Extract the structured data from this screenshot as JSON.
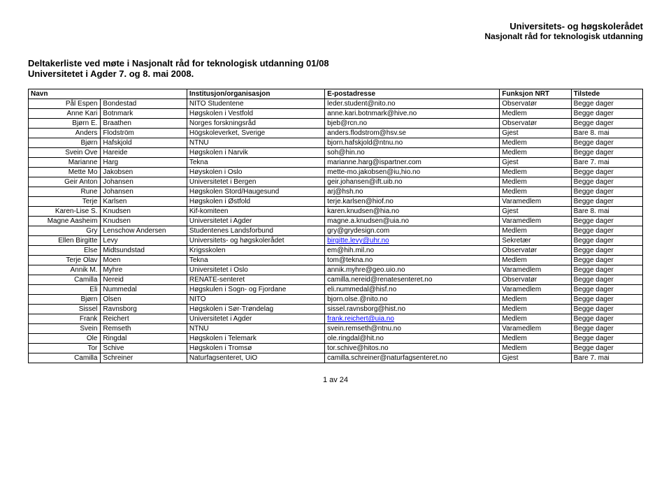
{
  "header": {
    "org_line1": "Universitets- og høgskolerådet",
    "org_line2": "Nasjonalt råd for teknologisk utdanning"
  },
  "title": {
    "line1": "Deltakerliste ved møte i Nasjonalt råd for teknologisk utdanning 01/08",
    "line2": "Universitetet i Agder 7. og 8. mai 2008."
  },
  "columns": {
    "navn": "Navn",
    "inst": "Institusjon/organisasjon",
    "email": "E-postadresse",
    "func": "Funksjon NRT",
    "tilstede": "Tilstede"
  },
  "rows": [
    {
      "f": "Pål Espen",
      "l": "Bondestad",
      "i": "NITO Studentene",
      "e": "leder.student@nito.no",
      "el": false,
      "fn": "Observatør",
      "t": "Begge dager"
    },
    {
      "f": "Anne Kari",
      "l": "Botnmark",
      "i": "Høgskolen i Vestfold",
      "e": "anne.kari.botnmark@hive.no",
      "el": false,
      "fn": "Medlem",
      "t": "Begge dager"
    },
    {
      "f": "Bjørn E.",
      "l": "Braathen",
      "i": "Norges forskningsråd",
      "e": "bjeb@rcn.no",
      "el": false,
      "fn": "Observatør",
      "t": "Begge dager"
    },
    {
      "f": "Anders",
      "l": "Flodström",
      "i": "Högskoleverket, Sverige",
      "e": "anders.flodstrom@hsv.se",
      "el": false,
      "fn": "Gjest",
      "t": "Bare 8. mai"
    },
    {
      "f": "Bjørn",
      "l": "Hafskjold",
      "i": "NTNU",
      "e": "bjorn.hafskjold@ntnu.no",
      "el": false,
      "fn": "Medlem",
      "t": "Begge dager"
    },
    {
      "f": "Svein Ove",
      "l": "Hareide",
      "i": "Høgskolen i Narvik",
      "e": "soh@hin.no",
      "el": false,
      "fn": "Medlem",
      "t": "Begge dager"
    },
    {
      "f": "Marianne",
      "l": "Harg",
      "i": "Tekna",
      "e": "marianne.harg@ispartner.com",
      "el": false,
      "fn": "Gjest",
      "t": "Bare 7. mai"
    },
    {
      "f": "Mette Mo",
      "l": "Jakobsen",
      "i": "Høyskolen i Oslo",
      "e": "mette-mo.jakobsen@iu,hio.no",
      "el": false,
      "fn": "Medlem",
      "t": "Begge dager"
    },
    {
      "f": "Geir Anton",
      "l": "Johansen",
      "i": "Universitetet i Bergen",
      "e": "geir.johansen@ift.uib.no",
      "el": false,
      "fn": "Medlem",
      "t": "Begge dager"
    },
    {
      "f": "Rune",
      "l": "Johansen",
      "i": "Høgskolen Stord/Haugesund",
      "e": "arj@hsh.no",
      "el": false,
      "fn": "Medlem",
      "t": "Begge dager"
    },
    {
      "f": "Terje",
      "l": "Karlsen",
      "i": "Høgskolen i Østfold",
      "e": "terje.karlsen@hiof.no",
      "el": false,
      "fn": "Varamedlem",
      "t": "Begge dager"
    },
    {
      "f": "Karen-Lise S.",
      "l": "Knudsen",
      "i": "Kif-komiteen",
      "e": "karen.knudsen@hia.no",
      "el": false,
      "fn": "Gjest",
      "t": "Bare 8. mai"
    },
    {
      "f": "Magne Aasheim",
      "l": "Knudsen",
      "i": "Universitetet i Agder",
      "e": "magne.a.knudsen@uia.no",
      "el": false,
      "fn": "Varamedlem",
      "t": "Begge dager"
    },
    {
      "f": "Gry",
      "l": "Lenschow Andersen",
      "i": "Studentenes Landsforbund",
      "e": "gry@grydesign.com",
      "el": false,
      "fn": "Medlem",
      "t": "Begge dager"
    },
    {
      "f": "Ellen Birgitte",
      "l": "Levy",
      "i": "Universitets- og høgskolerådet",
      "e": "birgitte.levy@uhr.no",
      "el": true,
      "fn": "Sekretær",
      "t": "Begge dager"
    },
    {
      "f": "Else",
      "l": "Midtsundstad",
      "i": "Krigsskolen",
      "e": "em@hih.mil.no",
      "el": false,
      "fn": "Observatør",
      "t": "Begge dager"
    },
    {
      "f": "Terje Olav",
      "l": "Moen",
      "i": "Tekna",
      "e": "tom@tekna.no",
      "el": false,
      "fn": "Medlem",
      "t": "Begge dager"
    },
    {
      "f": "Annik M.",
      "l": "Myhre",
      "i": "Universitetet i Oslo",
      "e": "annik.myhre@geo.uio.no",
      "el": false,
      "fn": "Varamedlem",
      "t": "Begge dager"
    },
    {
      "f": "Camilla",
      "l": "Nereid",
      "i": "RENATE-senteret",
      "e": "camilla.nereid@renatesenteret.no",
      "el": false,
      "fn": "Observatør",
      "t": "Begge dager"
    },
    {
      "f": "Eli",
      "l": "Nummedal",
      "i": "Høgskulen i Sogn- og Fjordane",
      "e": "eli.nummedal@hisf.no",
      "el": false,
      "fn": "Varamedlem",
      "t": "Begge dager"
    },
    {
      "f": "Bjørn",
      "l": "Olsen",
      "i": "NITO",
      "e": "bjorn.olse.@nito.no",
      "el": false,
      "fn": "Medlem",
      "t": "Begge dager"
    },
    {
      "f": "Sissel",
      "l": "Ravnsborg",
      "i": "Høgskolen i Sør-Trøndelag",
      "e": "sissel.ravnsborg@hist.no",
      "el": false,
      "fn": "Medlem",
      "t": "Begge dager"
    },
    {
      "f": "Frank",
      "l": "Reichert",
      "i": "Universitetet i Agder",
      "e": "frank.reichert@uia.no",
      "el": true,
      "fn": "Medlem",
      "t": "Begge dager"
    },
    {
      "f": "Svein",
      "l": "Remseth",
      "i": "NTNU",
      "e": "svein.remseth@ntnu.no",
      "el": false,
      "fn": "Varamedlem",
      "t": "Begge dager"
    },
    {
      "f": "Ole",
      "l": "Ringdal",
      "i": "Høgskolen i Telemark",
      "e": "ole.ringdal@hit.no",
      "el": false,
      "fn": "Medlem",
      "t": "Begge dager"
    },
    {
      "f": "Tor",
      "l": "Schive",
      "i": "Høgskolen i Tromsø",
      "e": "tor.schive@hitos.no",
      "el": false,
      "fn": "Medlem",
      "t": "Begge dager"
    },
    {
      "f": "Camilla",
      "l": "Schreiner",
      "i": "Naturfagsenteret, UiO",
      "e": "camilla.schreiner@naturfagsenteret.no",
      "el": false,
      "fn": "Gjest",
      "t": "Bare 7. mai"
    }
  ],
  "footer": "1 av 24"
}
